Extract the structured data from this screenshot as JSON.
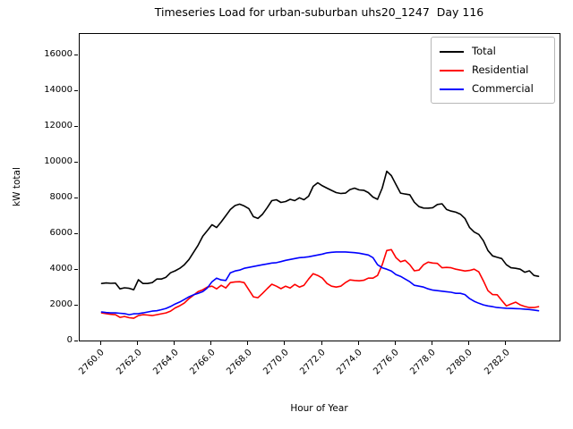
{
  "chart_data": {
    "type": "line",
    "title": "Timeseries Load for urban-suburban uhs20_1247  Day 116",
    "xlabel": "Hour of Year",
    "ylabel": "kW total",
    "xlim": [
      2758.81,
      2784.94
    ],
    "ylim": [
      0,
      17250
    ],
    "grid": false,
    "xticks": {
      "values": [
        2760,
        2762,
        2764,
        2766,
        2768,
        2770,
        2772,
        2774,
        2776,
        2778,
        2780,
        2782
      ],
      "labels": [
        "2760.0",
        "2762.0",
        "2764.0",
        "2766.0",
        "2768.0",
        "2770.0",
        "2772.0",
        "2774.0",
        "2776.0",
        "2778.0",
        "2780.0",
        "2782.0"
      ]
    },
    "yticks": {
      "values": [
        0,
        2000,
        4000,
        6000,
        8000,
        10000,
        12000,
        14000,
        16000
      ],
      "labels": [
        "0",
        "2000",
        "4000",
        "6000",
        "8000",
        "10000",
        "12000",
        "14000",
        "16000"
      ]
    },
    "x_start": 2760.0,
    "x_step_hours": 0.25,
    "legend": {
      "position": "upper right",
      "entries": [
        "Total",
        "Residential",
        "Commercial"
      ]
    },
    "series": [
      {
        "name": "Total",
        "color": "#000000",
        "values": [
          3250,
          3280,
          3260,
          3270,
          2950,
          3010,
          2980,
          2900,
          3460,
          3250,
          3250,
          3300,
          3500,
          3500,
          3600,
          3850,
          3960,
          4100,
          4300,
          4600,
          5000,
          5400,
          5900,
          6220,
          6550,
          6390,
          6700,
          7050,
          7400,
          7620,
          7700,
          7600,
          7450,
          7000,
          6900,
          7140,
          7500,
          7900,
          7950,
          7800,
          7850,
          7975,
          7900,
          8060,
          7950,
          8150,
          8700,
          8900,
          8730,
          8600,
          8475,
          8350,
          8300,
          8320,
          8520,
          8600,
          8500,
          8480,
          8350,
          8100,
          7975,
          8600,
          9550,
          9300,
          8800,
          8320,
          8270,
          8230,
          7810,
          7560,
          7480,
          7475,
          7500,
          7680,
          7720,
          7400,
          7310,
          7250,
          7140,
          6900,
          6390,
          6140,
          6000,
          5650,
          5100,
          4800,
          4720,
          4650,
          4300,
          4130,
          4100,
          4050,
          3880,
          3960,
          3700,
          3650
        ]
      },
      {
        "name": "Residential",
        "color": "#ff0000",
        "values": [
          1600,
          1560,
          1520,
          1500,
          1350,
          1400,
          1330,
          1300,
          1450,
          1500,
          1480,
          1450,
          1500,
          1550,
          1600,
          1700,
          1880,
          2000,
          2150,
          2400,
          2600,
          2800,
          2900,
          3050,
          3100,
          2950,
          3150,
          3000,
          3300,
          3340,
          3350,
          3300,
          2900,
          2500,
          2450,
          2700,
          2960,
          3210,
          3100,
          2960,
          3100,
          3000,
          3200,
          3050,
          3150,
          3500,
          3800,
          3700,
          3550,
          3250,
          3100,
          3050,
          3100,
          3300,
          3450,
          3420,
          3400,
          3430,
          3550,
          3550,
          3700,
          4300,
          5100,
          5150,
          4700,
          4470,
          4550,
          4300,
          3960,
          4000,
          4300,
          4450,
          4400,
          4380,
          4130,
          4150,
          4130,
          4050,
          4000,
          3950,
          3980,
          4050,
          3900,
          3400,
          2850,
          2630,
          2620,
          2300,
          1990,
          2100,
          2200,
          2050,
          1960,
          1900,
          1900,
          1950
        ]
      },
      {
        "name": "Commercial",
        "color": "#0000ff",
        "values": [
          1650,
          1620,
          1600,
          1600,
          1580,
          1560,
          1500,
          1550,
          1560,
          1600,
          1650,
          1700,
          1720,
          1780,
          1850,
          1960,
          2100,
          2210,
          2350,
          2500,
          2620,
          2700,
          2800,
          3000,
          3350,
          3550,
          3450,
          3420,
          3850,
          3950,
          4000,
          4100,
          4150,
          4200,
          4250,
          4300,
          4350,
          4400,
          4420,
          4480,
          4550,
          4600,
          4650,
          4700,
          4720,
          4750,
          4800,
          4850,
          4900,
          4970,
          5000,
          5020,
          5020,
          5020,
          5000,
          4980,
          4950,
          4900,
          4850,
          4700,
          4300,
          4130,
          4050,
          3950,
          3750,
          3650,
          3500,
          3350,
          3150,
          3100,
          3050,
          2950,
          2880,
          2850,
          2820,
          2790,
          2760,
          2700,
          2700,
          2630,
          2400,
          2250,
          2140,
          2050,
          1990,
          1950,
          1900,
          1880,
          1860,
          1850,
          1840,
          1830,
          1810,
          1790,
          1760,
          1720
        ]
      }
    ]
  }
}
